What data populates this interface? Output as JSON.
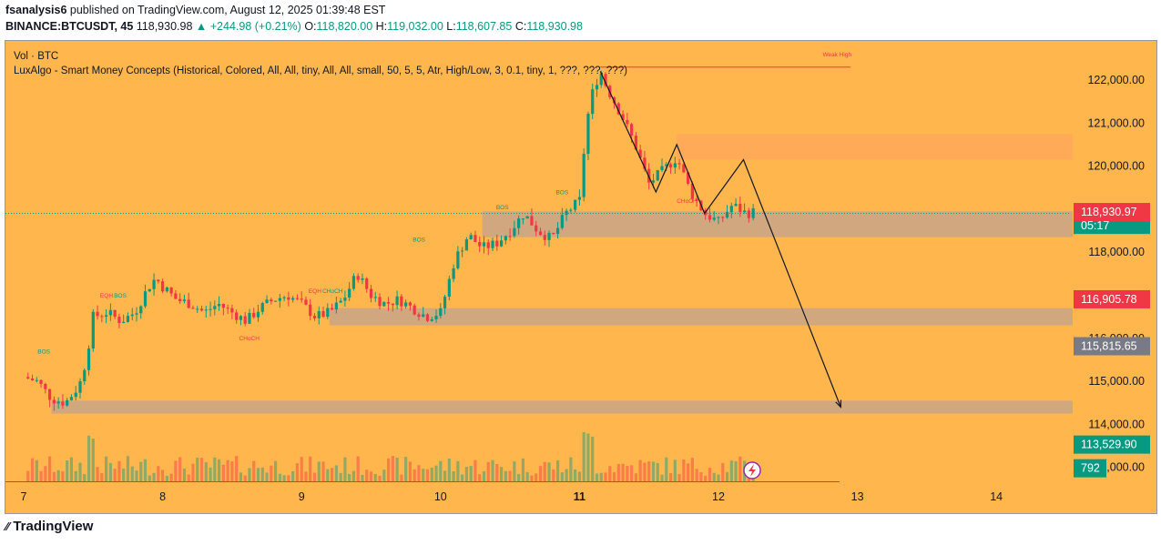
{
  "header": {
    "author": "fsanalysis6",
    "published_text": "published on TradingView.com, August 12, 2025 01:39:48 EST",
    "symbol": "BINANCE:BTCUSDT, 45",
    "last": "118,930.98",
    "change": "▲ +244.98 (+0.21%)",
    "o_label": "O:",
    "o_val": "118,820.00",
    "h_label": "H:",
    "h_val": "119,032.00",
    "l_label": "L:",
    "l_val": "118,607.85",
    "c_label": "C:",
    "c_val": "118,930.98"
  },
  "indicators": {
    "vol": "Vol · BTC",
    "smc": "LuxAlgo - Smart Money Concepts (Historical, Colored, All, All, tiny, All, All, small, 50, 5, 5, Atr, High/Low, 3, 0.1, tiny, 1, ???, ???, ???)"
  },
  "footer": {
    "brand": "TradingView"
  },
  "colors": {
    "background": "#ffb74d",
    "up": "#089981",
    "down": "#f23645",
    "zone": "#c9a58a",
    "supply": "#ffa858"
  },
  "chart_data": {
    "type": "candlestick",
    "symbol": "BINANCE:BTCUSDT",
    "interval": "45",
    "x_ticks": [
      "7",
      "8",
      "9",
      "10",
      "11",
      "12",
      "13",
      "14"
    ],
    "y_ticks": [
      "122,000.00",
      "121,000.00",
      "120,000.00",
      "119,000.00",
      "118,000.00",
      "117,000.00",
      "116,000.00",
      "115,000.00",
      "114,000.00",
      "113,000.00"
    ],
    "y_tick_values": [
      122000,
      121000,
      120000,
      119000,
      118000,
      117000,
      116000,
      115000,
      114000,
      113000
    ],
    "ylim": [
      112550,
      122850
    ],
    "price_badges": [
      {
        "label": "118,930.98",
        "sub": "05:17",
        "value": 118930.98,
        "color": "#089981"
      },
      {
        "label": "118,930.97",
        "value": 118930.97,
        "color": "#f23645"
      },
      {
        "label": "116,905.78",
        "value": 116905.78,
        "color": "#f23645"
      },
      {
        "label": "115,815.65",
        "value": 115815.65,
        "color": "#787b86"
      },
      {
        "label": "113,529.90",
        "value": 113529.9,
        "color": "#089981"
      },
      {
        "label": "792",
        "value": 112980,
        "color": "#089981"
      }
    ],
    "close_path": [
      [
        7.0,
        115.1
      ],
      [
        7.1,
        115.0
      ],
      [
        7.2,
        114.6
      ],
      [
        7.3,
        114.5
      ],
      [
        7.4,
        114.9
      ],
      [
        7.45,
        115.5
      ],
      [
        7.5,
        116.5
      ],
      [
        7.6,
        116.6
      ],
      [
        7.7,
        116.4
      ],
      [
        7.8,
        116.6
      ],
      [
        7.9,
        117.2
      ],
      [
        7.95,
        117.4
      ],
      [
        8.0,
        117.2
      ],
      [
        8.1,
        116.9
      ],
      [
        8.2,
        116.8
      ],
      [
        8.3,
        116.6
      ],
      [
        8.4,
        116.8
      ],
      [
        8.5,
        116.6
      ],
      [
        8.6,
        116.4
      ],
      [
        8.7,
        116.7
      ],
      [
        8.8,
        116.9
      ],
      [
        8.9,
        117.0
      ],
      [
        9.0,
        116.8
      ],
      [
        9.1,
        116.5
      ],
      [
        9.2,
        116.6
      ],
      [
        9.3,
        116.9
      ],
      [
        9.4,
        117.5
      ],
      [
        9.5,
        117.0
      ],
      [
        9.6,
        116.8
      ],
      [
        9.7,
        116.9
      ],
      [
        9.8,
        116.7
      ],
      [
        9.9,
        116.5
      ],
      [
        10.0,
        116.6
      ],
      [
        10.1,
        117.8
      ],
      [
        10.2,
        118.4
      ],
      [
        10.3,
        118.1
      ],
      [
        10.4,
        118.2
      ],
      [
        10.5,
        118.5
      ],
      [
        10.6,
        118.9
      ],
      [
        10.7,
        118.5
      ],
      [
        10.8,
        118.3
      ],
      [
        10.9,
        118.9
      ],
      [
        11.0,
        119.2
      ],
      [
        11.05,
        121.0
      ],
      [
        11.1,
        121.8
      ],
      [
        11.15,
        122.2
      ],
      [
        11.2,
        121.8
      ],
      [
        11.3,
        121.2
      ],
      [
        11.4,
        120.5
      ],
      [
        11.5,
        119.6
      ],
      [
        11.6,
        119.9
      ],
      [
        11.7,
        120.2
      ],
      [
        11.8,
        119.4
      ],
      [
        11.9,
        118.9
      ],
      [
        12.0,
        118.7
      ],
      [
        12.1,
        119.1
      ],
      [
        12.2,
        118.9
      ],
      [
        12.25,
        118.93
      ]
    ],
    "zones": [
      {
        "name": "supply",
        "x0": 11.7,
        "x1": 14.6,
        "y0": 120.15,
        "y1": 120.75
      },
      {
        "name": "demand-1",
        "x0": 10.3,
        "x1": 14.6,
        "y0": 118.35,
        "y1": 118.95
      },
      {
        "name": "demand-2",
        "x0": 9.2,
        "x1": 14.6,
        "y0": 116.3,
        "y1": 116.7
      },
      {
        "name": "demand-3",
        "x0": 7.2,
        "x1": 14.6,
        "y0": 114.25,
        "y1": 114.55
      }
    ],
    "projection": [
      [
        11.15,
        122.2
      ],
      [
        11.55,
        119.4
      ],
      [
        11.7,
        120.5
      ],
      [
        11.9,
        118.9
      ],
      [
        12.18,
        120.15
      ],
      [
        12.88,
        114.4
      ]
    ],
    "labels": [
      {
        "text": "BOS",
        "x": 7.1,
        "y": 115.65,
        "color": "#089981"
      },
      {
        "text": "EQH",
        "x": 7.55,
        "y": 116.95,
        "color": "#f23645"
      },
      {
        "text": "BOS",
        "x": 7.65,
        "y": 116.95,
        "color": "#089981"
      },
      {
        "text": "CHoCH",
        "x": 8.55,
        "y": 115.95,
        "color": "#f23645"
      },
      {
        "text": "EQH",
        "x": 9.05,
        "y": 117.05,
        "color": "#f23645"
      },
      {
        "text": "CHoCH",
        "x": 9.15,
        "y": 117.05,
        "color": "#089981"
      },
      {
        "text": "BOS",
        "x": 9.8,
        "y": 118.25,
        "color": "#089981"
      },
      {
        "text": "BOS",
        "x": 10.4,
        "y": 119.0,
        "color": "#089981"
      },
      {
        "text": "BOS",
        "x": 10.83,
        "y": 119.35,
        "color": "#089981"
      },
      {
        "text": "CHoCH",
        "x": 11.7,
        "y": 119.15,
        "color": "#f23645"
      },
      {
        "text": "Weak High",
        "x": 12.75,
        "y": 122.55,
        "color": "#f23645"
      }
    ],
    "weak_high": {
      "x0": 11.15,
      "x1": 12.95,
      "y": 122.3
    }
  }
}
